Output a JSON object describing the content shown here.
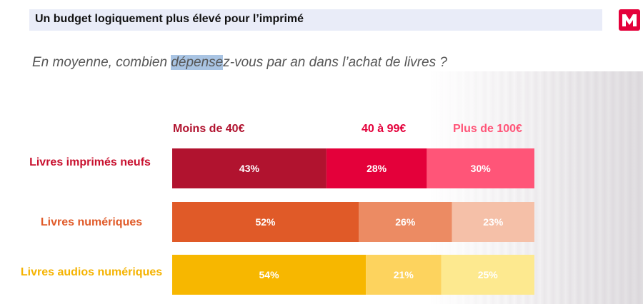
{
  "header": {
    "title": "Un budget logiquement plus élevé pour l’imprimé",
    "logo_letter": "M",
    "logo_color": "#e4003a"
  },
  "question": {
    "before": "En moyenne, combien ",
    "highlight": "dépense",
    "after": "z-vous par an dans l’achat de livres ?"
  },
  "chart_data": {
    "type": "bar",
    "orientation": "horizontal-stacked-100",
    "columns": [
      "Moins de 40€",
      "40 à 99€",
      "Plus de 100€"
    ],
    "column_colors": [
      "#b1132f",
      "#e4003a",
      "#ff5578"
    ],
    "categories": [
      "Livres imprimés neufs",
      "Livres numériques",
      "Livres audios numériques"
    ],
    "category_colors": [
      "#c8102e",
      "#e05a28",
      "#f5b300"
    ],
    "series": [
      {
        "name": "Moins de 40€",
        "values": [
          43,
          52,
          54
        ],
        "labels": [
          "43%",
          "52%",
          "54%"
        ]
      },
      {
        "name": "40 à 99€",
        "values": [
          28,
          26,
          21
        ],
        "labels": [
          "28%",
          "26%",
          "21%"
        ]
      },
      {
        "name": "Plus de 100€",
        "values": [
          30,
          23,
          25
        ],
        "labels": [
          "30%",
          "23%",
          "25%"
        ]
      }
    ],
    "segment_colors": [
      [
        "#b1132f",
        "#e4003a",
        "#ff5578"
      ],
      [
        "#e05a28",
        "#ec8b63",
        "#f5c0a8"
      ],
      [
        "#f7b700",
        "#fdd35e",
        "#fde98f"
      ]
    ],
    "xlim": [
      0,
      101
    ]
  }
}
